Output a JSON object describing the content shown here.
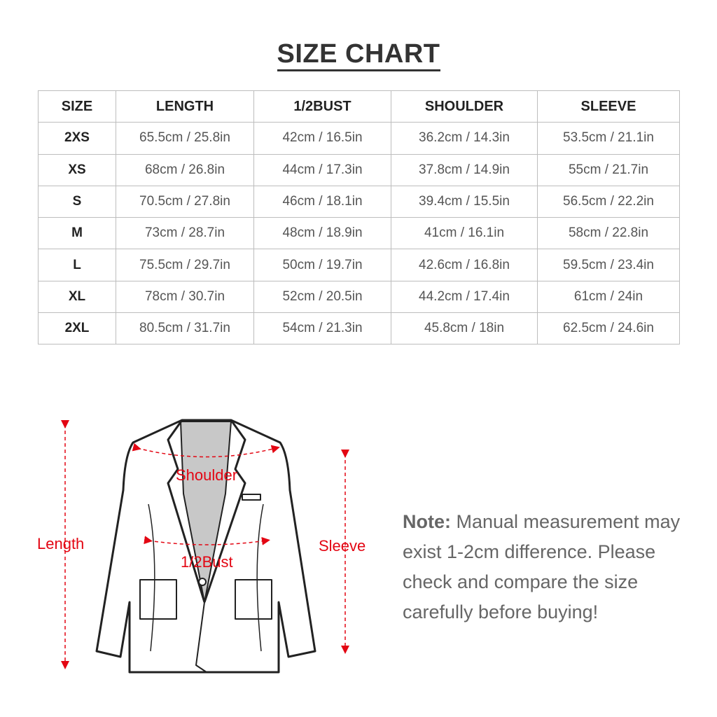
{
  "title": "SIZE CHART",
  "table": {
    "headers": [
      "SIZE",
      "LENGTH",
      "1/2BUST",
      "SHOULDER",
      "SLEEVE"
    ],
    "rows": [
      [
        "2XS",
        "65.5cm / 25.8in",
        "42cm / 16.5in",
        "36.2cm / 14.3in",
        "53.5cm / 21.1in"
      ],
      [
        "XS",
        "68cm / 26.8in",
        "44cm / 17.3in",
        "37.8cm / 14.9in",
        "55cm / 21.7in"
      ],
      [
        "S",
        "70.5cm / 27.8in",
        "46cm / 18.1in",
        "39.4cm / 15.5in",
        "56.5cm / 22.2in"
      ],
      [
        "M",
        "73cm / 28.7in",
        "48cm / 18.9in",
        "41cm / 16.1in",
        "58cm / 22.8in"
      ],
      [
        "L",
        "75.5cm / 29.7in",
        "50cm / 19.7in",
        "42.6cm / 16.8in",
        "59.5cm / 23.4in"
      ],
      [
        "XL",
        "78cm / 30.7in",
        "52cm / 20.5in",
        "44.2cm / 17.4in",
        "61cm / 24in"
      ],
      [
        "2XL",
        "80.5cm / 31.7in",
        "54cm / 21.3in",
        "45.8cm / 18in",
        "62.5cm / 24.6in"
      ]
    ]
  },
  "diagram": {
    "labels": {
      "length": "Length",
      "sleeve": "Sleeve",
      "shoulder": "Shoulder",
      "bust": "1/2Bust"
    },
    "accent_color": "#e30613"
  },
  "note": {
    "label": "Note:",
    "text": " Manual measurement may exist 1-2cm difference. Please check and compare the size carefully before buying!"
  }
}
